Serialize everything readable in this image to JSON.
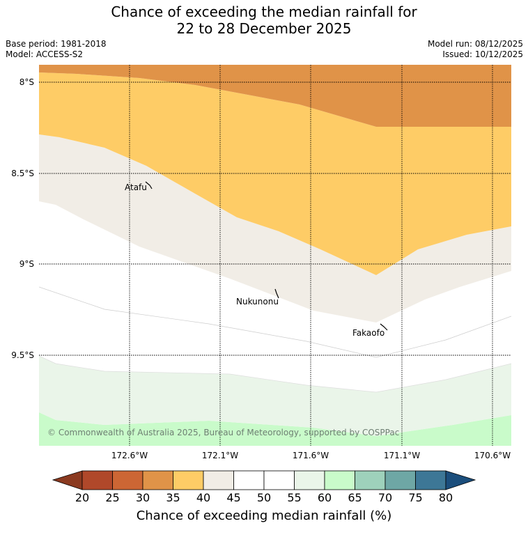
{
  "title": {
    "line1": "Chance of exceeding the median rainfall for",
    "line2": "22 to 28 December 2025"
  },
  "meta": {
    "base_period": "Base period: 1981-2018",
    "model": "Model: ACCESS-S2",
    "model_run": "Model run: 08/12/2025",
    "issued": "Issued: 10/12/2025"
  },
  "map": {
    "lon_labels": [
      "172.6°W",
      "172.1°W",
      "171.6°W",
      "171.1°W",
      "170.6°W"
    ],
    "lat_labels": [
      "8°S",
      "8.5°S",
      "9°S",
      "9.5°S"
    ],
    "places": [
      "Atafu",
      "Nukunonu",
      "Fakaofo"
    ],
    "copyright": "© Commonwealth of Australia 2025, Bureau of Meteorology, supported by COSPPac"
  },
  "colorbar": {
    "ticks": [
      "20",
      "25",
      "30",
      "35",
      "40",
      "45",
      "50",
      "55",
      "60",
      "65",
      "70",
      "75",
      "80"
    ],
    "colors": [
      "#8b3a20",
      "#b0482a",
      "#cc6634",
      "#e09348",
      "#fecc66",
      "#f1ede6",
      "#ffffff",
      "#ffffff",
      "#eaf5e9",
      "#c9fbca",
      "#9ed1bb",
      "#6ea7a5",
      "#3d7796",
      "#1b4e7c"
    ],
    "title": "Chance of exceeding median rainfall (%)"
  }
}
